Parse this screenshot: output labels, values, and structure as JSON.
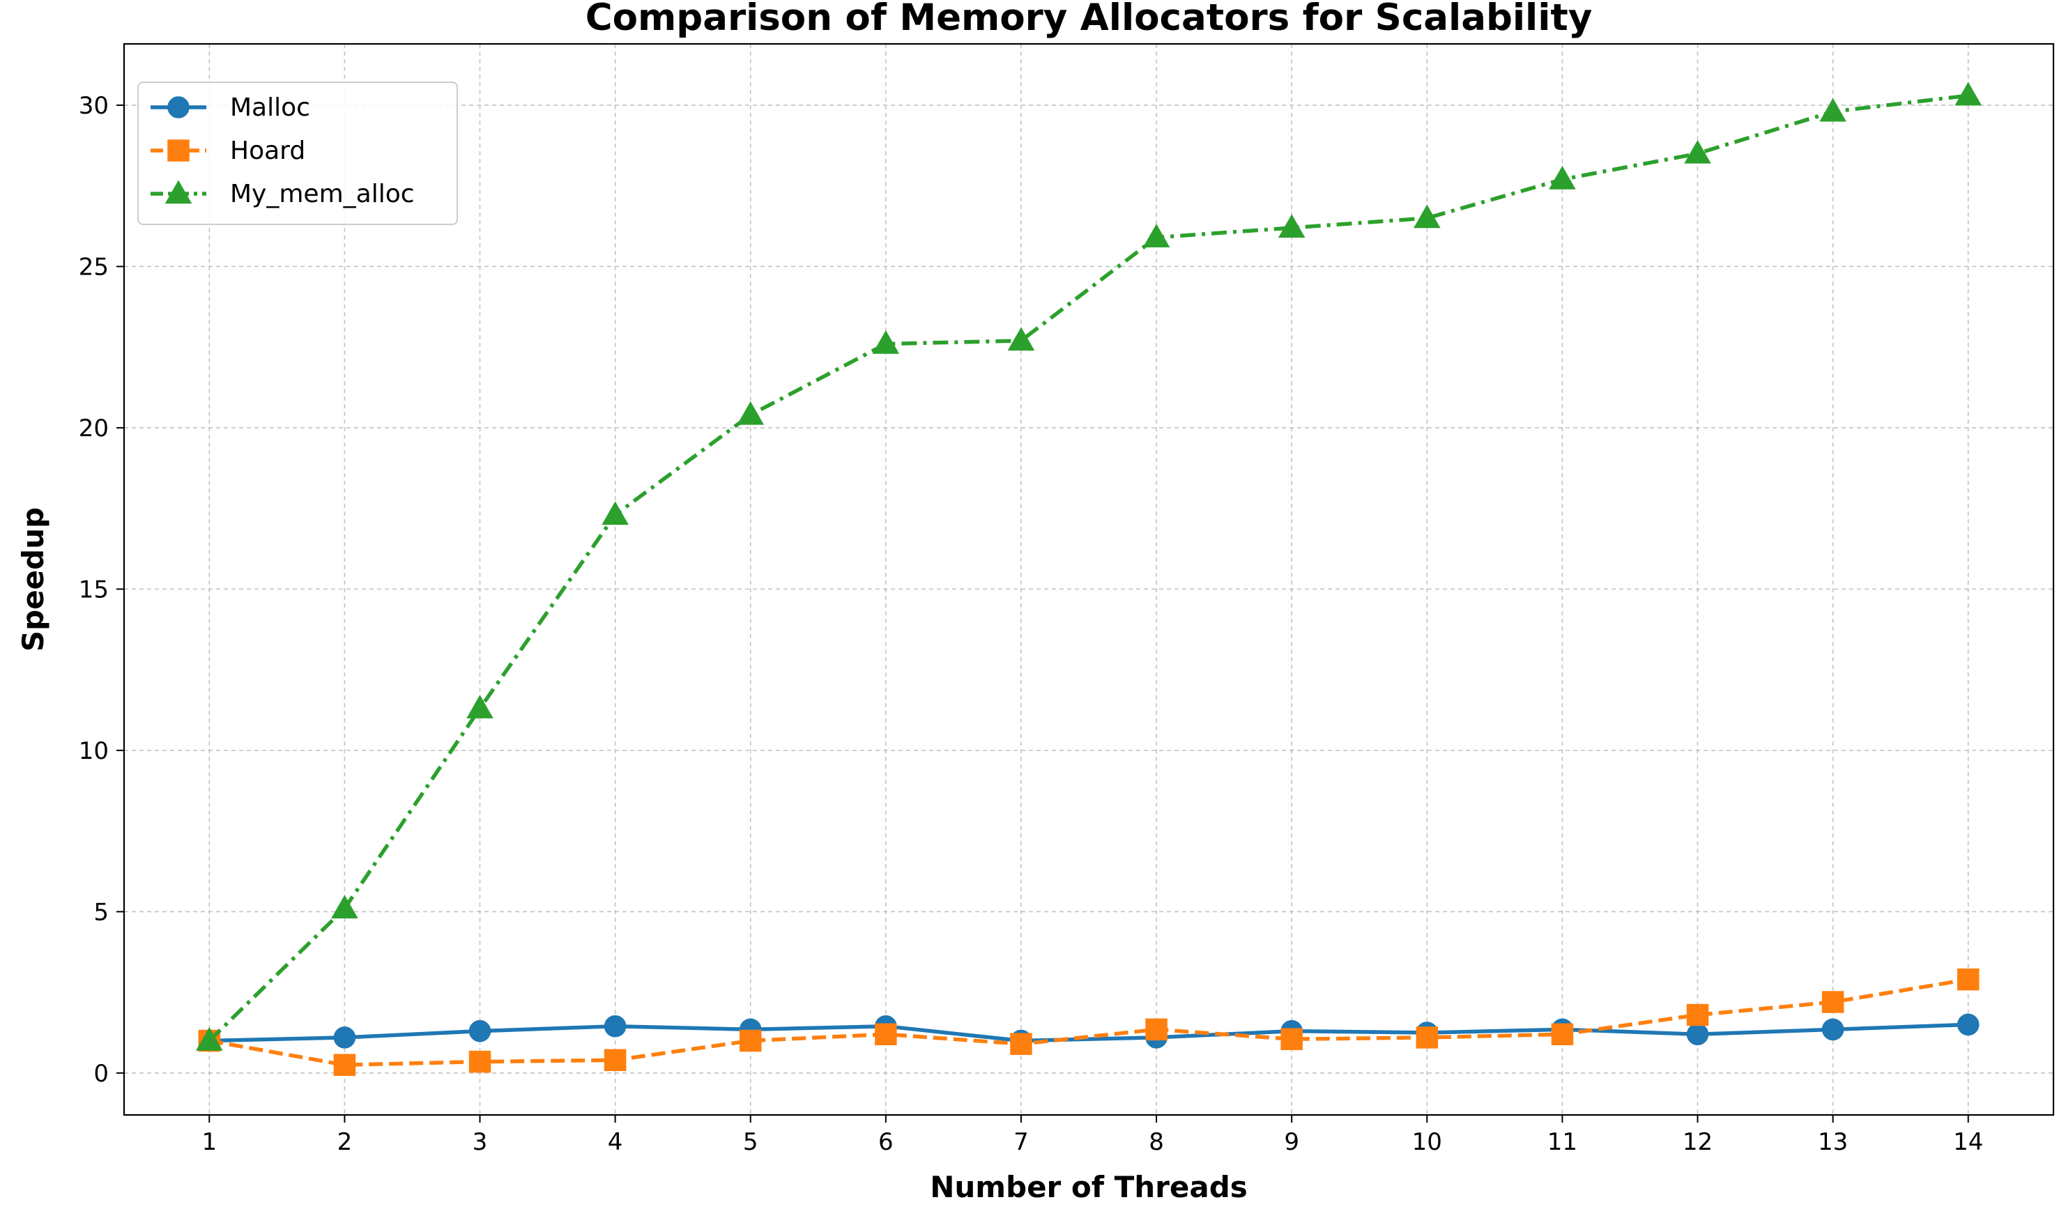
{
  "chart_data": {
    "type": "line",
    "title": "Comparison of Memory Allocators for Scalability",
    "xlabel": "Number of Threads",
    "ylabel": "Speedup",
    "x": [
      1,
      2,
      3,
      4,
      5,
      6,
      7,
      8,
      9,
      10,
      11,
      12,
      13,
      14
    ],
    "xlim": [
      0.37,
      14.63
    ],
    "ylim": [
      -1.3,
      31.9
    ],
    "yticks": [
      0,
      5,
      10,
      15,
      20,
      25,
      30
    ],
    "grid": true,
    "legend_position": "top-left",
    "series": [
      {
        "name": "Malloc",
        "color": "#1f77b4",
        "marker": "circle",
        "linestyle": "solid",
        "values": [
          1.0,
          1.1,
          1.3,
          1.45,
          1.35,
          1.45,
          1.0,
          1.1,
          1.3,
          1.25,
          1.35,
          1.2,
          1.35,
          1.5
        ]
      },
      {
        "name": "Hoard",
        "color": "#ff7f0e",
        "marker": "square",
        "linestyle": "dashed",
        "values": [
          1.0,
          0.25,
          0.35,
          0.4,
          1.0,
          1.2,
          0.9,
          1.35,
          1.05,
          1.1,
          1.2,
          1.8,
          2.2,
          2.9
        ]
      },
      {
        "name": "My_mem_alloc",
        "color": "#2ca02c",
        "marker": "triangle",
        "linestyle": "dashdot",
        "values": [
          1.0,
          5.1,
          11.3,
          17.3,
          20.4,
          22.6,
          22.7,
          25.9,
          26.2,
          26.5,
          27.7,
          28.5,
          29.8,
          30.3
        ]
      }
    ]
  }
}
